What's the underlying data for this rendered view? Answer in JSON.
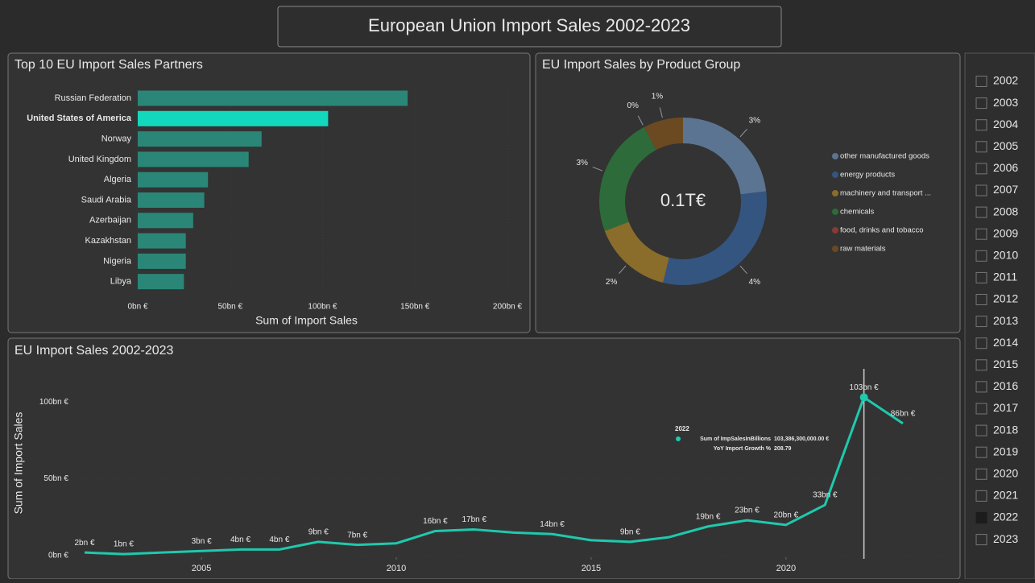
{
  "title": "European Union Import Sales 2002-2023",
  "chart_data": [
    {
      "type": "bar",
      "orientation": "horizontal",
      "title": "Top 10 EU Import Sales Partners",
      "categories": [
        "Russian Federation",
        "United States of America",
        "Norway",
        "United Kingdom",
        "Algeria",
        "Saudi Arabia",
        "Azerbaijan",
        "Kazakhstan",
        "Nigeria",
        "Libya"
      ],
      "values": [
        146,
        103,
        67,
        60,
        38,
        36,
        30,
        26,
        26,
        25
      ],
      "color": "#2a8777",
      "highlight": 1,
      "highlight_color": "#12d8bd",
      "xlim": [
        0,
        200
      ],
      "xticks": [
        {
          "value": 0,
          "label": "0bn €"
        },
        {
          "value": 50,
          "label": "50bn €"
        },
        {
          "value": 100,
          "label": "100bn €"
        },
        {
          "value": 150,
          "label": "150bn €"
        },
        {
          "value": 200,
          "label": "200bn €"
        }
      ],
      "xlabel": "Sum of Import Sales"
    },
    {
      "type": "pie",
      "donut": true,
      "title": "EU Import Sales by Product Group",
      "center_label": "0.1T€",
      "categories": [
        "other manufactured goods",
        "energy products",
        "machinery and transport ...",
        "chemicals",
        "food, drinks and tobacco",
        "raw materials"
      ],
      "values": [
        3,
        4,
        2,
        3,
        0,
        1
      ],
      "value_labels": [
        "3%",
        "4%",
        "2%",
        "3%",
        "0%",
        "1%"
      ],
      "colors": [
        "#5b7492",
        "#34557f",
        "#8a6d2a",
        "#2e6b3a",
        "#8a3a33",
        "#6b4a22"
      ],
      "legend": "right"
    },
    {
      "type": "line",
      "title": "EU Import Sales 2002-2023",
      "ylabel": "Sum of Import Sales",
      "x": [
        2002,
        2003,
        2004,
        2005,
        2006,
        2007,
        2008,
        2009,
        2010,
        2011,
        2012,
        2013,
        2014,
        2015,
        2016,
        2017,
        2018,
        2019,
        2020,
        2021,
        2022,
        2023
      ],
      "values": [
        2,
        1,
        2,
        3,
        4,
        4,
        9,
        7,
        8,
        16,
        17,
        15,
        14,
        10,
        9,
        12,
        19,
        23,
        20,
        33,
        103,
        86
      ],
      "value_labels": [
        "2bn €",
        "1bn €",
        null,
        "3bn €",
        "4bn €",
        "4bn €",
        "9bn €",
        "7bn €",
        null,
        "16bn €",
        "17bn €",
        null,
        "14bn €",
        null,
        "9bn €",
        null,
        "19bn €",
        "23bn €",
        "20bn €",
        "33bn €",
        "103bn €",
        "86bn €"
      ],
      "color": "#1fc9ad",
      "xlim": [
        2002,
        2023
      ],
      "xticks": [
        2005,
        2010,
        2015,
        2020
      ],
      "ylim": [
        0,
        120
      ],
      "yticks": [
        {
          "value": 0,
          "label": "0bn €"
        },
        {
          "value": 50,
          "label": "50bn €"
        },
        {
          "value": 100,
          "label": "100bn €"
        }
      ]
    }
  ],
  "tooltip": {
    "title": "2022",
    "rows": [
      [
        "Sum of ImpSalesInBillions",
        "103,386,300,000.00 €"
      ],
      [
        "YoY Import Growth %",
        "208.79"
      ]
    ]
  },
  "slicer": {
    "items": [
      "2002",
      "2003",
      "2004",
      "2005",
      "2006",
      "2007",
      "2008",
      "2009",
      "2010",
      "2011",
      "2012",
      "2013",
      "2014",
      "2015",
      "2016",
      "2017",
      "2018",
      "2019",
      "2020",
      "2021",
      "2022",
      "2023"
    ],
    "selected": 20
  }
}
